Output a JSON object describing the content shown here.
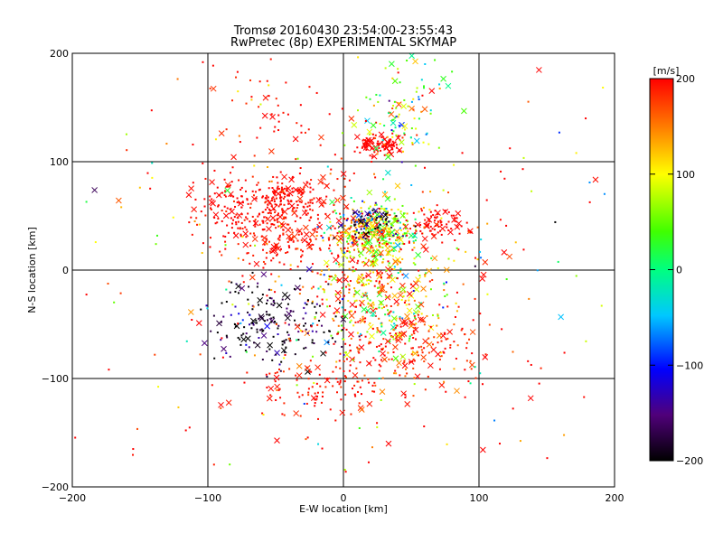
{
  "chart_data": {
    "type": "scatter",
    "title": "Tromsø 20160430 23:54:00-23:55:43",
    "subtitle": "RwPretec (8p) EXPERIMENTAL SKYMAP",
    "xlabel": "E-W location [km]",
    "ylabel": "N-S location [km]",
    "xlim": [
      -200,
      200
    ],
    "ylim": [
      -200,
      200
    ],
    "xticks": [
      -200,
      -100,
      0,
      100,
      200
    ],
    "yticks": [
      -200,
      -100,
      0,
      100,
      200
    ],
    "grid": true,
    "colorbar": {
      "label": "[m/s]",
      "min": -200,
      "max": 200,
      "ticks": [
        200,
        100,
        0,
        -100,
        -200
      ],
      "colormap": [
        "#000000",
        "#50007a",
        "#0000ff",
        "#00c8ff",
        "#00ff80",
        "#40ff00",
        "#ffff00",
        "#ff8000",
        "#ff0000"
      ]
    },
    "marker_types": [
      "dot",
      "x"
    ],
    "clusters": [
      {
        "x": 22,
        "y": 35,
        "sx": 15,
        "sy": 13,
        "n": 420,
        "v": 95,
        "vs": 75
      },
      {
        "x": -45,
        "y": 45,
        "sx": 24,
        "sy": 22,
        "n": 330,
        "v": 195,
        "vs": 10
      },
      {
        "x": -42,
        "y": 68,
        "sx": 9,
        "sy": 8,
        "n": 70,
        "v": 198,
        "vs": 5
      },
      {
        "x": 25,
        "y": -25,
        "sx": 26,
        "sy": 28,
        "n": 380,
        "v": 125,
        "vs": 80
      },
      {
        "x": -50,
        "y": -50,
        "sx": 22,
        "sy": 20,
        "n": 190,
        "v": -185,
        "vs": 40
      },
      {
        "x": 25,
        "y": 115,
        "sx": 8,
        "sy": 5,
        "n": 100,
        "v": 200,
        "vs": 3
      },
      {
        "x": 45,
        "y": 145,
        "sx": 14,
        "sy": 28,
        "n": 110,
        "v": 60,
        "vs": 80
      },
      {
        "x": 50,
        "y": -70,
        "sx": 35,
        "sy": 25,
        "n": 190,
        "v": 190,
        "vs": 25
      },
      {
        "x": 70,
        "y": 40,
        "sx": 12,
        "sy": 8,
        "n": 80,
        "v": 200,
        "vs": 5
      },
      {
        "x": -85,
        "y": 60,
        "sx": 15,
        "sy": 15,
        "n": 80,
        "v": 200,
        "vs": 5
      },
      {
        "x": 20,
        "y": 45,
        "sx": 10,
        "sy": 8,
        "n": 70,
        "v": -170,
        "vs": 60
      },
      {
        "x": -20,
        "y": -110,
        "sx": 25,
        "sy": 15,
        "n": 100,
        "v": 195,
        "vs": 10
      },
      {
        "x": -55,
        "y": 150,
        "sx": 28,
        "sy": 28,
        "n": 45,
        "v": 195,
        "vs": 10
      },
      {
        "x": 0,
        "y": 0,
        "sx": 110,
        "sy": 110,
        "n": 260,
        "v": 180,
        "vs": 60
      },
      {
        "x": 0,
        "y": 0,
        "sx": 90,
        "sy": 90,
        "n": 110,
        "v": 40,
        "vs": 130
      }
    ]
  }
}
